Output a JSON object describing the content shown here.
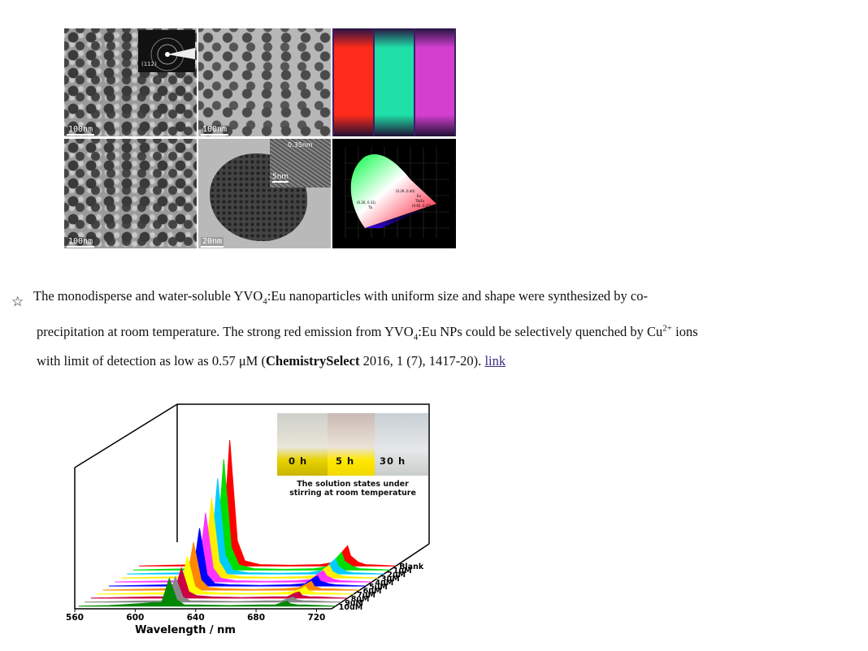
{
  "figure_top": {
    "tem_scalebars": [
      "100nm",
      "100nm",
      "100nm",
      "20nm"
    ],
    "hrtem_inset_scale": "5nm",
    "lattice_label": "0.35nm",
    "saed_label": "(112)",
    "vial_colors": [
      "#ff2a1a",
      "#1fe0a8",
      "#d43fd0"
    ],
    "cie_points": [
      "(0.29, 0.40)",
      "(0.26, 0.31)",
      "(0.65, 0.35)"
    ],
    "cie_legend": [
      "Tb",
      "Eu",
      "Tb/Eu"
    ]
  },
  "paragraph": {
    "bullet_icon": "star-outline-icon",
    "line1_a": "The monodisperse and water-soluble YVO",
    "line1_sub": "4",
    "line1_b": ":Eu nanoparticles with uniform size and shape were synthesized by co-",
    "line2_a": "precipitation at room temperature. The strong red emission from YVO",
    "line2_sub": "4",
    "line2_b": ":Eu NPs could be selectively quenched by Cu",
    "line2_sup": "2+",
    "line2_c": " ions",
    "line3_a": "with limit of detection as low as 0.57 μM (",
    "journal": "ChemistrySelect",
    "line3_b": " 2016, 1 (7), 1417-20). ",
    "link_text": "link"
  },
  "figure_bottom": {
    "xlabel": "Wavelength / nm",
    "x_ticks": [
      "560",
      "600",
      "640",
      "680",
      "720"
    ],
    "series_labels": [
      "Blank",
      "1uM",
      "2uM",
      "3uM",
      "4uM",
      "5uM",
      "6uM",
      "7uM",
      "8uM",
      "9uM",
      "10uM"
    ],
    "inset_labels": [
      "0 h",
      "5 h",
      "30 h"
    ],
    "inset_caption_1": "The solution states under",
    "inset_caption_2": "stirring at room temperature"
  },
  "chart_data": {
    "type": "line",
    "xlabel": "Wavelength / nm",
    "ylabel": "",
    "xlim": [
      560,
      730
    ],
    "x": [
      560,
      580,
      600,
      610,
      615,
      620,
      625,
      630,
      640,
      660,
      680,
      690,
      695,
      698,
      700,
      705,
      710,
      720,
      730
    ],
    "series": [
      {
        "name": "Blank",
        "values": [
          0,
          0.5,
          1,
          2,
          8,
          100,
          20,
          4,
          1,
          0.5,
          1,
          3,
          12,
          16,
          8,
          3,
          1,
          0.5,
          0
        ]
      },
      {
        "name": "1uM",
        "values": [
          0,
          0.5,
          1,
          2,
          7,
          88,
          18,
          4,
          1,
          0.5,
          1,
          3,
          10,
          14,
          7,
          3,
          1,
          0.5,
          0
        ]
      },
      {
        "name": "2uM",
        "values": [
          0,
          0.5,
          1,
          2,
          6,
          76,
          15,
          3,
          1,
          0.5,
          1,
          3,
          9,
          12,
          6,
          2,
          1,
          0.5,
          0
        ]
      },
      {
        "name": "3uM",
        "values": [
          0,
          0.5,
          1,
          2,
          5,
          64,
          13,
          3,
          1,
          0.5,
          1,
          2,
          8,
          10,
          5,
          2,
          1,
          0.5,
          0
        ]
      },
      {
        "name": "4uM",
        "values": [
          0,
          0.5,
          1,
          2,
          5,
          55,
          11,
          3,
          1,
          0.5,
          1,
          2,
          7,
          9,
          5,
          2,
          1,
          0.5,
          0
        ]
      },
      {
        "name": "5uM",
        "values": [
          0,
          0.5,
          1,
          1,
          4,
          46,
          9,
          2,
          1,
          0.5,
          1,
          2,
          6,
          8,
          4,
          2,
          1,
          0.5,
          0
        ]
      },
      {
        "name": "6uM",
        "values": [
          0,
          0.5,
          1,
          1,
          4,
          38,
          8,
          2,
          1,
          0.5,
          1,
          2,
          5,
          7,
          3,
          1,
          1,
          0.5,
          0
        ]
      },
      {
        "name": "7uM",
        "values": [
          0,
          0.5,
          1,
          1,
          3,
          30,
          6,
          2,
          1,
          0.5,
          1,
          2,
          4,
          6,
          3,
          1,
          1,
          0.5,
          0
        ]
      },
      {
        "name": "8uM",
        "values": [
          0,
          0.5,
          1,
          1,
          3,
          24,
          5,
          2,
          1,
          0.5,
          1,
          1,
          4,
          5,
          2,
          1,
          1,
          0.5,
          0
        ]
      },
      {
        "name": "9uM",
        "values": [
          0,
          0.5,
          1,
          1,
          2,
          20,
          4,
          1,
          1,
          0.5,
          1,
          1,
          3,
          4,
          2,
          1,
          1,
          0.5,
          0
        ]
      },
      {
        "name": "10uM",
        "values": [
          0,
          0.5,
          2,
          3,
          3,
          22,
          5,
          1,
          1,
          0.5,
          1,
          1,
          3,
          4,
          2,
          1,
          1,
          0.5,
          0
        ]
      }
    ],
    "series_colors": [
      "#ff0000",
      "#00dd00",
      "#00ccff",
      "#ffee00",
      "#ff33ff",
      "#0000ff",
      "#ff8800",
      "#ffff00",
      "#cc0044",
      "#888888",
      "#008800"
    ]
  }
}
